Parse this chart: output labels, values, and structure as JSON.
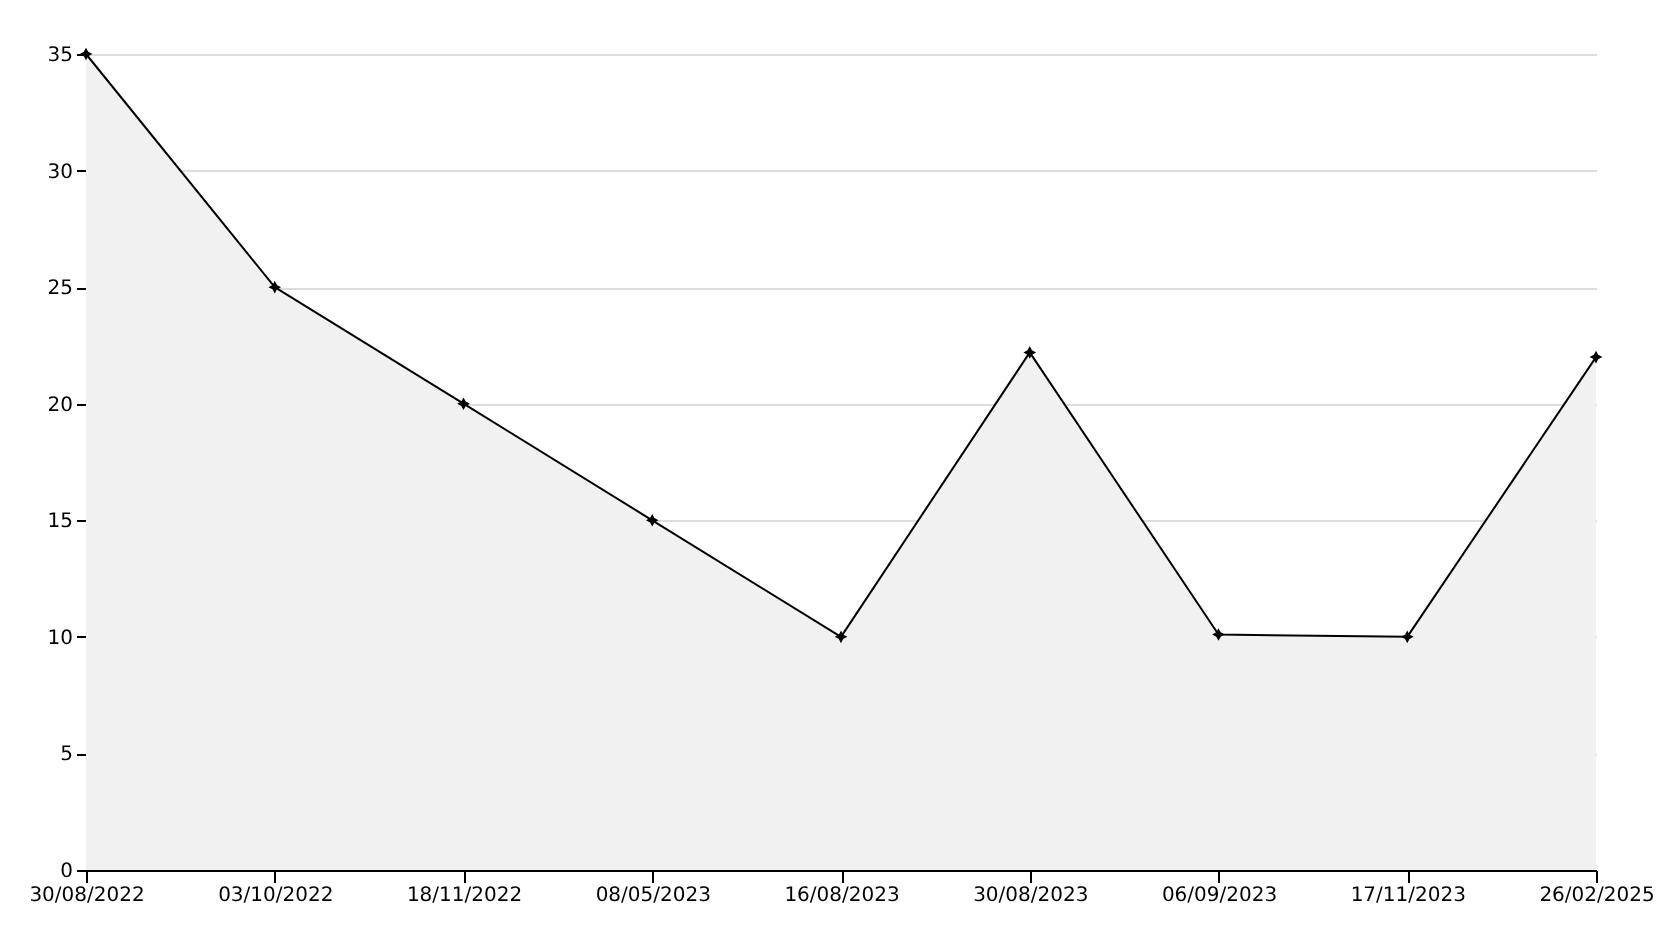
{
  "chart_data": {
    "type": "area",
    "categories": [
      "30/08/2022",
      "03/10/2022",
      "18/11/2022",
      "08/05/2023",
      "16/08/2023",
      "30/08/2023",
      "06/09/2023",
      "17/11/2023",
      "26/02/2025"
    ],
    "series": [
      {
        "color": "#f1f1f1",
        "values": [
          35,
          25,
          20,
          15,
          10,
          22.2,
          10.1,
          10,
          22
        ]
      }
    ],
    "ylim": [
      0,
      35
    ],
    "yticks": [
      0,
      5,
      10,
      15,
      20,
      25,
      30,
      35
    ],
    "grid": "y",
    "marker": "star"
  }
}
